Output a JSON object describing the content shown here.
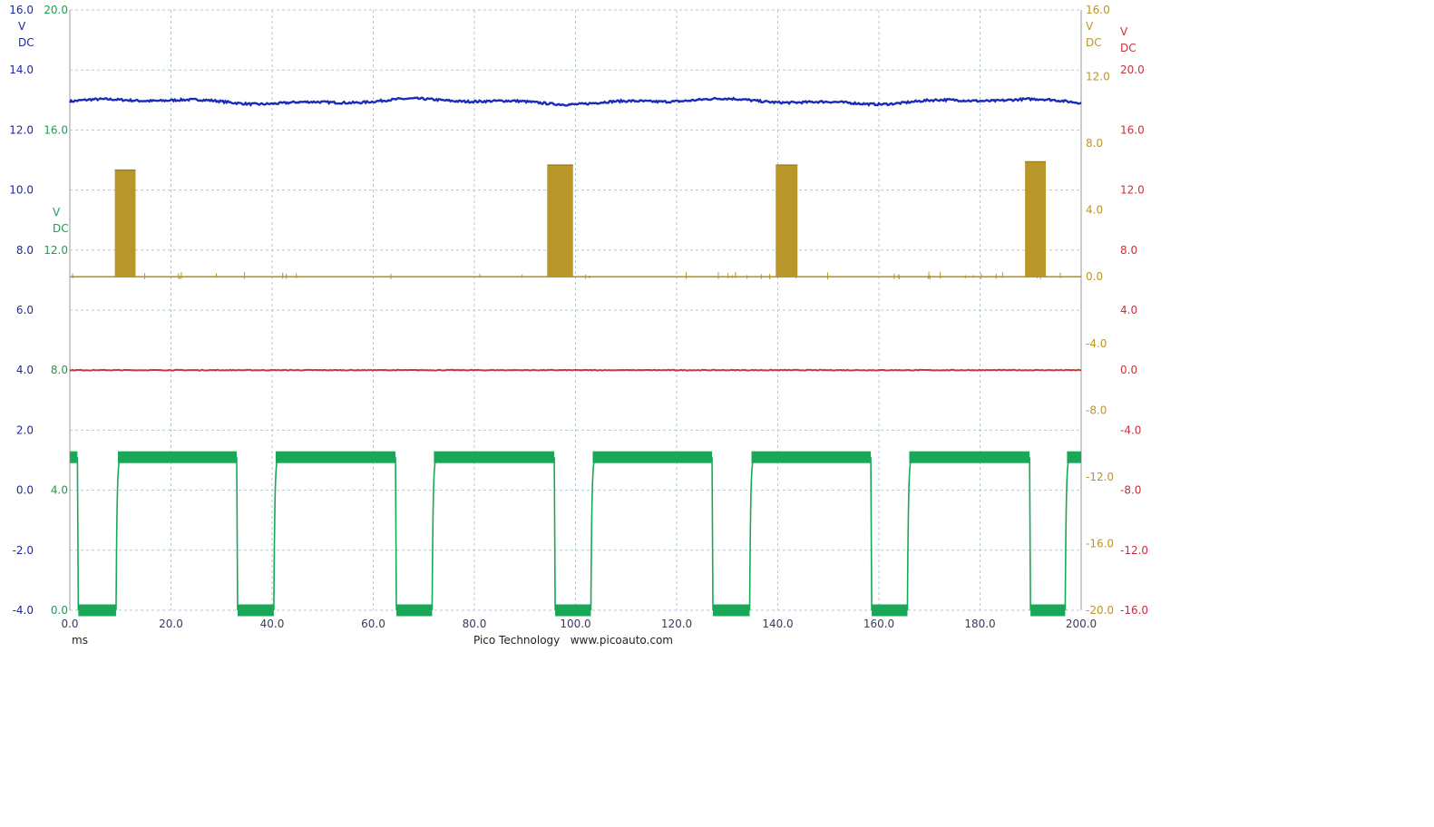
{
  "chart_data": {
    "type": "line",
    "x_unit": "ms",
    "x_range": [
      0,
      200
    ],
    "x_ticks": [
      "0.0",
      "20.0",
      "40.0",
      "60.0",
      "80.0",
      "100.0",
      "120.0",
      "140.0",
      "160.0",
      "180.0",
      "200.0"
    ],
    "footer": "Pico Technology   www.picoauto.com",
    "grid": true,
    "axes": [
      {
        "id": "blue",
        "side": "left",
        "color": "#1f2a9a",
        "unit_lines": [
          "V",
          "DC"
        ],
        "range": [
          -4,
          16
        ],
        "ticks": [
          "16.0",
          "14.0",
          "12.0",
          "10.0",
          "8.0",
          "6.0",
          "4.0",
          "2.0",
          "0.0",
          "-2.0",
          "-4.0"
        ]
      },
      {
        "id": "green",
        "side": "left",
        "color": "#18a050",
        "unit_lines": [
          "V",
          "DC"
        ],
        "range": [
          0,
          20
        ],
        "ticks": [
          "20.0",
          "16.0",
          "12.0",
          "8.0",
          "4.0",
          "0.0"
        ]
      },
      {
        "id": "gold",
        "side": "right",
        "color": "#b8962a",
        "unit_lines": [
          "V",
          "DC"
        ],
        "range": [
          -20,
          16
        ],
        "ticks": [
          "16.0",
          "12.0",
          "8.0",
          "4.0",
          "0.0",
          "-4.0",
          "-8.0",
          "-12.0",
          "-16.0",
          "-20.0"
        ]
      },
      {
        "id": "red",
        "side": "right",
        "color": "#c8303c",
        "unit_lines": [
          "V",
          "DC"
        ],
        "range": [
          -16,
          24
        ],
        "ticks": [
          "20.0",
          "16.0",
          "12.0",
          "8.0",
          "4.0",
          "0.0",
          "-4.0",
          "-8.0",
          "-12.0",
          "-16.0"
        ]
      }
    ],
    "series": [
      {
        "id": "blue",
        "axis": "blue",
        "color": "#1a2bb8",
        "kind": "dc",
        "level": 12.95
      },
      {
        "id": "red",
        "axis": "red",
        "color": "#d0343c",
        "kind": "dc",
        "level": 0.0
      },
      {
        "id": "gold",
        "axis": "gold",
        "color": "#b8962a",
        "kind": "pulses",
        "baseline": 0.0,
        "pulses": [
          {
            "start": 8.9,
            "end": 13.0,
            "peak": 6.4
          },
          {
            "start": 94.4,
            "end": 99.5,
            "peak": 6.7
          },
          {
            "start": 139.6,
            "end": 143.9,
            "peak": 6.7
          },
          {
            "start": 188.9,
            "end": 193.0,
            "peak": 6.9
          }
        ]
      },
      {
        "id": "green",
        "axis": "green",
        "color": "#18a858",
        "kind": "square",
        "high": 5.1,
        "low": 0.0,
        "high_segments": [
          [
            0,
            1.5
          ],
          [
            9.5,
            33.0
          ],
          [
            40.7,
            64.4
          ],
          [
            72.0,
            95.8
          ],
          [
            103.4,
            127.0
          ],
          [
            134.8,
            158.4
          ],
          [
            166.0,
            189.8
          ],
          [
            197.2,
            200
          ]
        ]
      }
    ]
  }
}
